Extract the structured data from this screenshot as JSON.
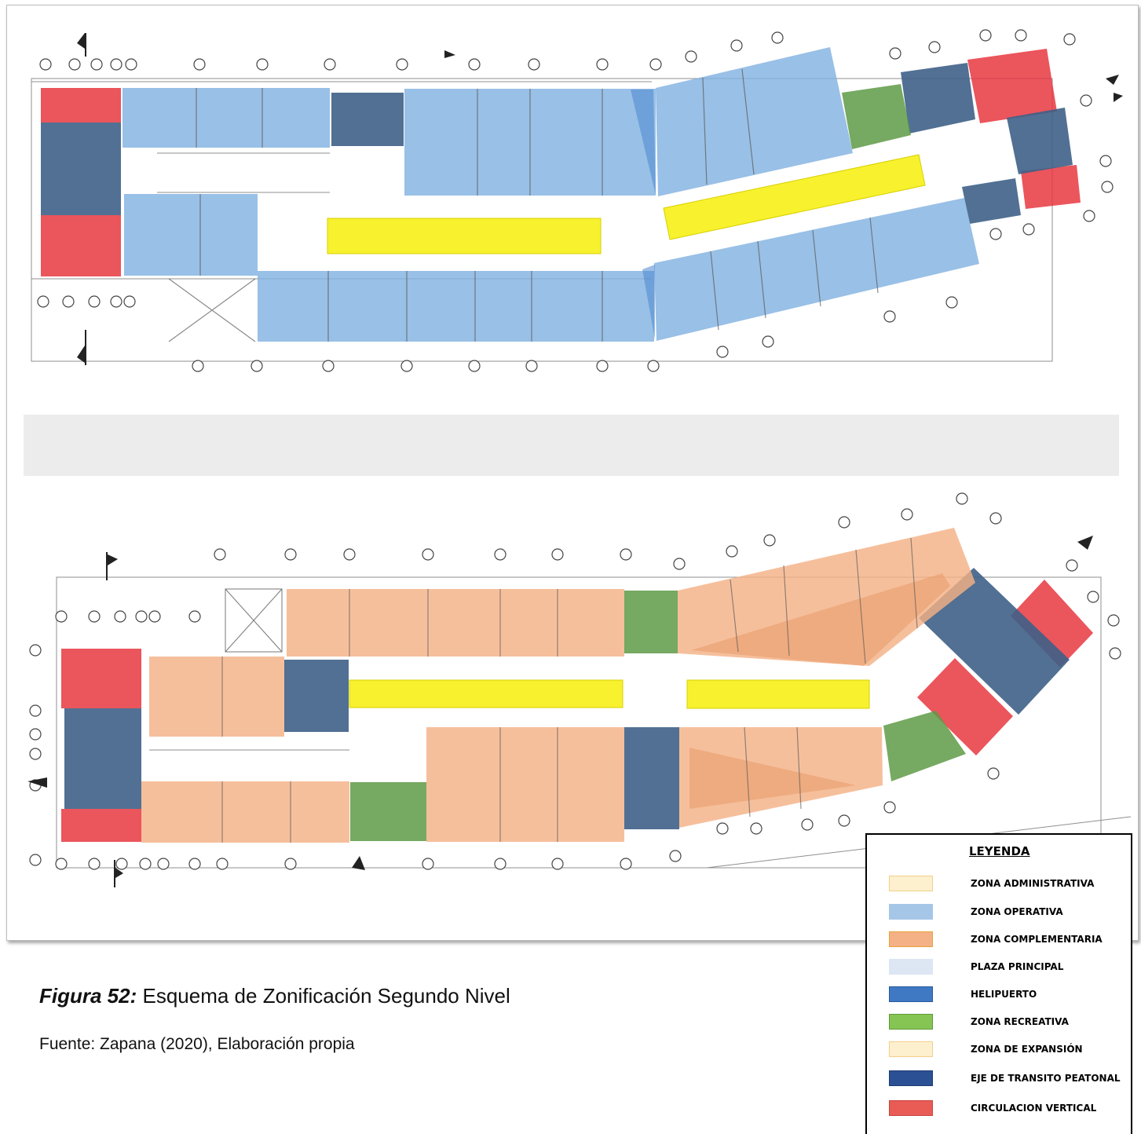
{
  "caption": {
    "figure_label": "Figura 52:",
    "title": "Esquema de Zonificación Segundo Nivel",
    "source": "Fuente: Zapana (2020), Elaboración propia"
  },
  "legend": {
    "title": "LEYENDA",
    "items": [
      {
        "label": "ZONA ADMINISTRATIVA",
        "fill": "#fdf0cf",
        "stroke": "#f2cf8a"
      },
      {
        "label": "ZONA OPERATIVA",
        "fill": "#a6c6e8",
        "stroke": "#a6c6e8"
      },
      {
        "label": "ZONA COMPLEMENTARIA",
        "fill": "#f4b186",
        "stroke": "#e8a23c"
      },
      {
        "label": "PLAZA PRINCIPAL",
        "fill": "#dde6f3",
        "stroke": "#dde6f3"
      },
      {
        "label": "HELIPUERTO",
        "fill": "#3f79c4",
        "stroke": "#2a5a9e"
      },
      {
        "label": "ZONA RECREATIVA",
        "fill": "#86c454",
        "stroke": "#5f9a35"
      },
      {
        "label": "ZONA DE EXPANSIÓN",
        "fill": "#fdf0cf",
        "stroke": "#f2cf8a"
      },
      {
        "label": "EJE DE TRANSITO PEATONAL",
        "fill": "#2b5093",
        "stroke": "#1e3d75"
      },
      {
        "label": "CIRCULACION VERTICAL",
        "fill": "#e85c55",
        "stroke": "#c94540"
      }
    ]
  },
  "zone_colors": {
    "operativa": "#7fb0e0",
    "complementaria": "#f4b186",
    "circulacion_vertical": "#e8373f",
    "transito_peatonal": "#43678f",
    "recreativa": "#5e9a45",
    "pasillo": "#f6f01c",
    "helipuerto": "#3f79c4"
  }
}
